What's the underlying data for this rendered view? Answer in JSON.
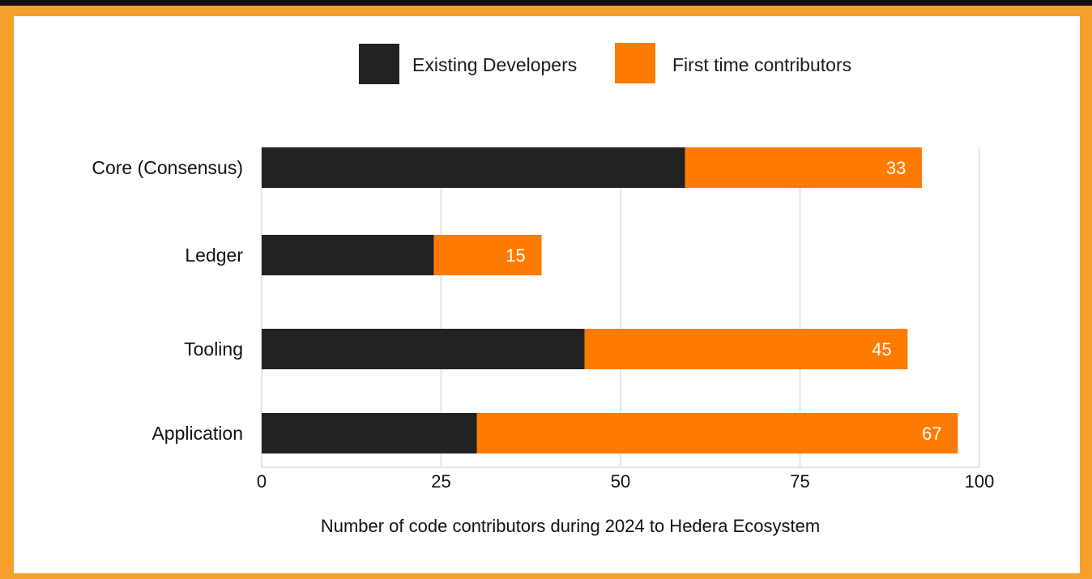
{
  "colors": {
    "frame": "#f5a02c",
    "background": "#ffffff",
    "existing": "#222222",
    "first_time": "#ff7b00",
    "grid": "#e6e6e6"
  },
  "chart_data": {
    "type": "bar",
    "orientation": "horizontal",
    "stacked": true,
    "categories": [
      "Core (Consensus)",
      "Ledger",
      "Tooling",
      "Application"
    ],
    "series": [
      {
        "name": "Existing Developers",
        "color": "#222222",
        "values": [
          59,
          24,
          45,
          30
        ]
      },
      {
        "name": "First time contributors",
        "color": "#ff7b00",
        "values": [
          33,
          15,
          45,
          67
        ]
      }
    ],
    "data_labels": [
      "33",
      "15",
      "45",
      "67"
    ],
    "xlim": [
      0,
      100
    ],
    "xticks": [
      "0",
      "25",
      "50",
      "75",
      "100"
    ],
    "xlabel": "Number of code contributors during 2024 to Hedera Ecosystem",
    "legend_position": "top",
    "grid": "vertical"
  }
}
